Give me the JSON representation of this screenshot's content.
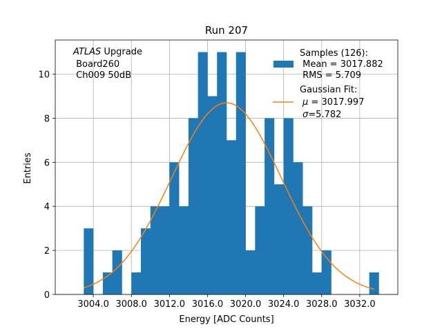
{
  "chart_data": {
    "type": "bar",
    "title": "Run 207",
    "xlabel": "Energy [ADC Counts]",
    "ylabel": "Entries",
    "xlim": [
      3000.0,
      3036.0
    ],
    "ylim": [
      0,
      11.55
    ],
    "grid": true,
    "x_ticks": [
      3004,
      3008,
      3012,
      3016,
      3020,
      3024,
      3028,
      3032
    ],
    "x_tick_labels": [
      "3004.0",
      "3008.0",
      "3012.0",
      "3016.0",
      "3020.0",
      "3024.0",
      "3028.0",
      "3032.0"
    ],
    "y_ticks": [
      0,
      2,
      4,
      6,
      8,
      10
    ],
    "y_tick_labels": [
      "0",
      "2",
      "4",
      "6",
      "8",
      "10"
    ],
    "bin_width": 1,
    "bins": [
      {
        "x": 3003,
        "count": 3
      },
      {
        "x": 3004,
        "count": 0
      },
      {
        "x": 3005,
        "count": 1
      },
      {
        "x": 3006,
        "count": 2
      },
      {
        "x": 3007,
        "count": 0
      },
      {
        "x": 3008,
        "count": 1
      },
      {
        "x": 3009,
        "count": 3
      },
      {
        "x": 3010,
        "count": 4
      },
      {
        "x": 3011,
        "count": 4
      },
      {
        "x": 3012,
        "count": 6
      },
      {
        "x": 3013,
        "count": 4
      },
      {
        "x": 3014,
        "count": 8
      },
      {
        "x": 3015,
        "count": 11
      },
      {
        "x": 3016,
        "count": 9
      },
      {
        "x": 3017,
        "count": 11
      },
      {
        "x": 3018,
        "count": 7
      },
      {
        "x": 3019,
        "count": 11
      },
      {
        "x": 3020,
        "count": 2
      },
      {
        "x": 3021,
        "count": 4
      },
      {
        "x": 3022,
        "count": 8
      },
      {
        "x": 3023,
        "count": 5
      },
      {
        "x": 3024,
        "count": 8
      },
      {
        "x": 3025,
        "count": 6
      },
      {
        "x": 3026,
        "count": 4
      },
      {
        "x": 3027,
        "count": 1
      },
      {
        "x": 3028,
        "count": 2
      },
      {
        "x": 3029,
        "count": 0
      },
      {
        "x": 3030,
        "count": 0
      },
      {
        "x": 3031,
        "count": 0
      },
      {
        "x": 3032,
        "count": 0
      },
      {
        "x": 3033,
        "count": 1
      }
    ],
    "fit": {
      "mu": 3017.997,
      "sigma": 5.782,
      "amplitude": 8.7,
      "x_range": [
        3003.0,
        3033.5
      ]
    },
    "colors": {
      "histogram": "#1f77b4",
      "fit": "#ff7f0e",
      "grid": "#b0b0b0"
    },
    "annotation": {
      "italic_part": "ATLAS",
      "rest_line1": " Upgrade",
      "line2": " Board260",
      "line3": " Ch009 50dB"
    },
    "legend": {
      "placement": "top-right",
      "samples_line1": "Samples (126):",
      "samples_line2": " Mean = 3017.882",
      "samples_line3": " RMS = 5.709",
      "fit_line1": "Gaussian Fit:",
      "fit_line2_sym": "μ",
      "fit_line2_val": " = 3017.997",
      "fit_line3_sym": "σ",
      "fit_line3_val": "=5.782"
    }
  }
}
